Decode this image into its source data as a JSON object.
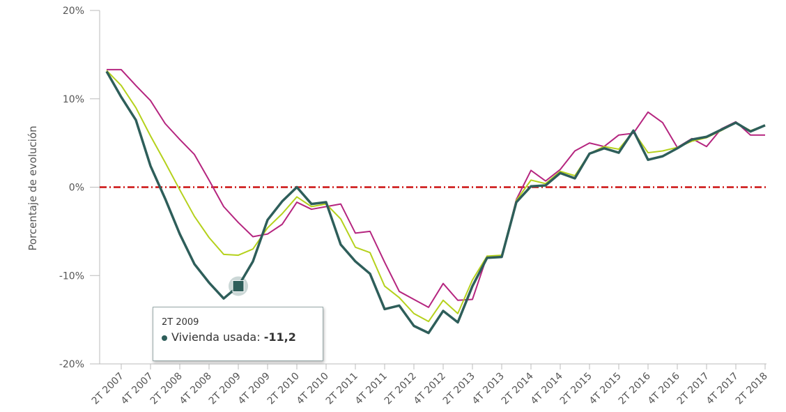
{
  "chart_data": {
    "type": "line",
    "y_label": "Porcentaje de evolución",
    "categories": [
      null,
      "2T 2007",
      null,
      "4T 2007",
      null,
      "2T 2008",
      null,
      "4T 2008",
      null,
      "2T 2009",
      null,
      "4T 2009",
      null,
      "2T 2010",
      null,
      "4T 2010",
      null,
      "2T 2011",
      null,
      "4T 2011",
      null,
      "2T 2012",
      null,
      "4T 2012",
      null,
      "2T 2013",
      null,
      "4T 2013",
      null,
      "2T 2014",
      null,
      "4T 2014",
      null,
      "2T 2015",
      null,
      "4T 2015",
      null,
      "2T 2016",
      null,
      "4T 2016",
      null,
      "2T 2017",
      null,
      "4T 2017",
      null,
      "2T 2018"
    ],
    "series": [
      {
        "name": "Vivienda usada",
        "color": "#2e5e5a",
        "values": [
          13.1,
          10.2,
          7.6,
          2.4,
          -1.3,
          -5.3,
          -8.7,
          -10.8,
          -12.6,
          -11.2,
          -8.4,
          -3.7,
          -1.6,
          0,
          -1.9,
          -1.7,
          -6.5,
          -8.4,
          -9.8,
          -13.8,
          -13.4,
          -15.7,
          -16.5,
          -14.0,
          -15.3,
          -11.2,
          -8.0,
          -7.9,
          -1.7,
          0.1,
          0.2,
          1.6,
          1.0,
          3.8,
          4.4,
          3.9,
          6.4,
          3.1,
          3.5,
          4.4,
          5.4,
          5.7,
          6.5,
          7.3,
          6.3,
          7.0
        ]
      },
      {
        "color": "#b5d11c",
        "values": [
          13.2,
          11.5,
          9.0,
          5.8,
          2.8,
          -0.3,
          -3.3,
          -5.7,
          -7.6,
          -7.7,
          -7.0,
          -4.6,
          -3.0,
          -1.1,
          -2.2,
          -1.9,
          -3.6,
          -6.8,
          -7.4,
          -11.2,
          -12.5,
          -14.3,
          -15.2,
          -12.8,
          -14.3,
          -10.5,
          -7.8,
          -7.7,
          -1.5,
          0.8,
          0.4,
          1.8,
          1.3,
          3.8,
          4.6,
          4.3,
          6.3,
          3.9,
          4.1,
          4.5,
          5.2,
          5.6,
          6.4,
          7.3,
          6.4,
          7.0
        ]
      },
      {
        "color": "#b5257f",
        "values": [
          13.3,
          13.3,
          11.5,
          9.8,
          7.2,
          5.4,
          3.7,
          0.8,
          -2.2,
          -4.0,
          -5.6,
          -5.3,
          -4.2,
          -1.7,
          -2.5,
          -2.2,
          -1.9,
          -5.2,
          -5.0,
          -8.5,
          -11.8,
          -12.7,
          -13.6,
          -10.9,
          -12.8,
          -12.7,
          -7.8,
          -7.9,
          -1.4,
          1.9,
          0.7,
          2.0,
          4.1,
          5.0,
          4.6,
          5.9,
          6.1,
          8.5,
          7.3,
          4.5,
          5.5,
          4.6,
          6.6,
          7.4,
          5.9,
          5.9
        ]
      }
    ],
    "ylim": [
      -20,
      20
    ],
    "yticks": [
      {
        "value": -20,
        "label": "-20%"
      },
      {
        "value": -10,
        "label": "-10%"
      },
      {
        "value": 0,
        "label": "0%"
      },
      {
        "value": 10,
        "label": "10%"
      },
      {
        "value": 20,
        "label": "20%"
      }
    ],
    "reference_line": {
      "value": 0,
      "color": "#cc1111"
    },
    "tooltip": {
      "title": "2T 2009",
      "label": "Vivienda usada:",
      "value_label": "-11,2",
      "series": 0,
      "index": 9
    }
  }
}
